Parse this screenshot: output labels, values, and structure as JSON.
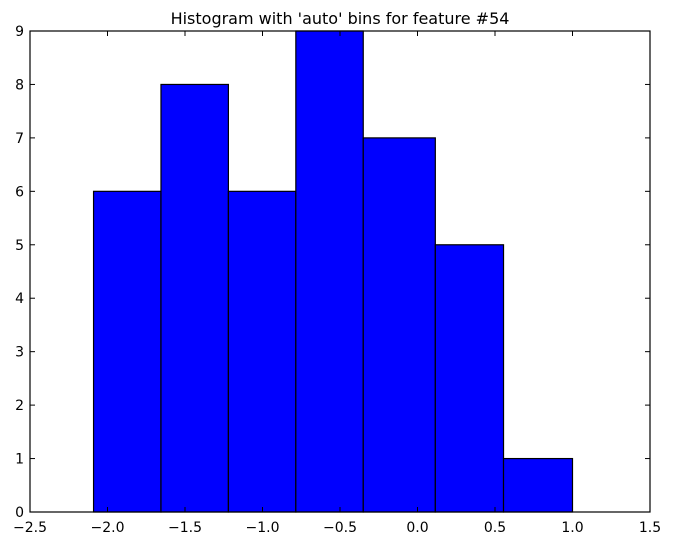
{
  "chart_data": {
    "type": "bar",
    "title": "Histogram with 'auto' bins for feature #54",
    "xlabel": "",
    "ylabel": "",
    "xlim": [
      -2.5,
      1.5
    ],
    "ylim": [
      0,
      9
    ],
    "x_ticks": [
      "−2.5",
      "−2.0",
      "−1.5",
      "−1.0",
      "−0.5",
      "0.0",
      "0.5",
      "1.0",
      "1.5"
    ],
    "y_ticks": [
      "0",
      "1",
      "2",
      "3",
      "4",
      "5",
      "6",
      "7",
      "8",
      "9"
    ],
    "bin_edges": [
      -2.09,
      -1.655,
      -1.22,
      -0.785,
      -0.35,
      0.115,
      0.555,
      1.0
    ],
    "counts": [
      6,
      8,
      6,
      9,
      7,
      5,
      1
    ],
    "bar_color": "#0000ff",
    "edge_color": "#000000",
    "grid": false
  }
}
